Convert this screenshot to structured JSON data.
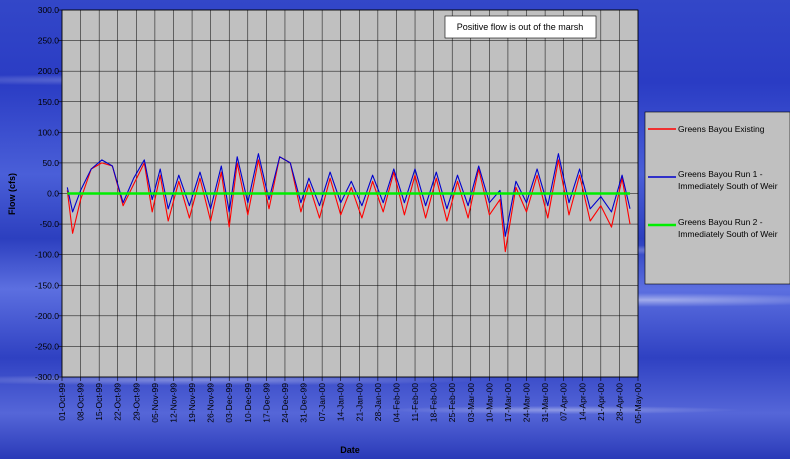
{
  "chart_data": {
    "type": "line",
    "title": "",
    "xlabel": "Date",
    "ylabel": "Flow (cfs)",
    "annotation": "Positive flow is out of the marsh",
    "ylim": [
      -300,
      300
    ],
    "y_ticks": [
      "300.0",
      "250.0",
      "200.0",
      "150.0",
      "100.0",
      "50.0",
      "0.0",
      "-50.0",
      "-100.0",
      "-150.0",
      "-200.0",
      "-250.0",
      "-300.0"
    ],
    "x_ticks": [
      "01-Oct-99",
      "08-Oct-99",
      "15-Oct-99",
      "22-Oct-99",
      "29-Oct-99",
      "05-Nov-99",
      "12-Nov-99",
      "19-Nov-99",
      "26-Nov-99",
      "03-Dec-99",
      "10-Dec-99",
      "17-Dec-99",
      "24-Dec-99",
      "31-Dec-99",
      "07-Jan-00",
      "14-Jan-00",
      "21-Jan-00",
      "28-Jan-00",
      "04-Feb-00",
      "11-Feb-00",
      "18-Feb-00",
      "25-Feb-00",
      "03-Mar-00",
      "10-Mar-00",
      "17-Mar-00",
      "24-Mar-00",
      "31-Mar-00",
      "07-Apr-00",
      "14-Apr-00",
      "21-Apr-00",
      "28-Apr-00",
      "05-May-00"
    ],
    "grid": true,
    "legend_position": "right",
    "series": [
      {
        "name": "Greens Bayou Existing",
        "color": "#ff0000",
        "x": [
          "1999-10-03",
          "1999-10-05",
          "1999-10-08",
          "1999-10-12",
          "1999-10-16",
          "1999-10-20",
          "1999-10-24",
          "1999-10-28",
          "1999-11-01",
          "1999-11-04",
          "1999-11-07",
          "1999-11-10",
          "1999-11-14",
          "1999-11-18",
          "1999-11-22",
          "1999-11-26",
          "1999-11-30",
          "1999-12-03",
          "1999-12-06",
          "1999-12-10",
          "1999-12-14",
          "1999-12-18",
          "1999-12-22",
          "1999-12-26",
          "1999-12-30",
          "2000-01-02",
          "2000-01-06",
          "2000-01-10",
          "2000-01-14",
          "2000-01-18",
          "2000-01-22",
          "2000-01-26",
          "2000-01-30",
          "2000-02-03",
          "2000-02-07",
          "2000-02-11",
          "2000-02-15",
          "2000-02-19",
          "2000-02-23",
          "2000-02-27",
          "2000-03-02",
          "2000-03-06",
          "2000-03-10",
          "2000-03-14",
          "2000-03-16",
          "2000-03-20",
          "2000-03-24",
          "2000-03-28",
          "2000-04-01",
          "2000-04-05",
          "2000-04-09",
          "2000-04-13",
          "2000-04-17",
          "2000-04-21",
          "2000-04-25",
          "2000-04-29",
          "2000-05-02"
        ],
        "y": [
          5,
          -65,
          -10,
          40,
          50,
          45,
          -20,
          15,
          50,
          -30,
          30,
          -45,
          20,
          -40,
          25,
          -45,
          35,
          -55,
          50,
          -35,
          55,
          -25,
          60,
          50,
          -30,
          15,
          -40,
          25,
          -35,
          10,
          -40,
          20,
          -30,
          35,
          -35,
          30,
          -40,
          25,
          -45,
          20,
          -40,
          40,
          -35,
          -10,
          -95,
          10,
          -30,
          30,
          -40,
          55,
          -35,
          30,
          -45,
          -20,
          -55,
          25,
          -50
        ]
      },
      {
        "name": "Greens Bayou Run 1 - Immediately South of Weir",
        "color": "#0000cc",
        "x": [
          "1999-10-03",
          "1999-10-05",
          "1999-10-08",
          "1999-10-12",
          "1999-10-16",
          "1999-10-20",
          "1999-10-24",
          "1999-10-28",
          "1999-11-01",
          "1999-11-04",
          "1999-11-07",
          "1999-11-10",
          "1999-11-14",
          "1999-11-18",
          "1999-11-22",
          "1999-11-26",
          "1999-11-30",
          "1999-12-03",
          "1999-12-06",
          "1999-12-10",
          "1999-12-14",
          "1999-12-18",
          "1999-12-22",
          "1999-12-26",
          "1999-12-30",
          "2000-01-02",
          "2000-01-06",
          "2000-01-10",
          "2000-01-14",
          "2000-01-18",
          "2000-01-22",
          "2000-01-26",
          "2000-01-30",
          "2000-02-03",
          "2000-02-07",
          "2000-02-11",
          "2000-02-15",
          "2000-02-19",
          "2000-02-23",
          "2000-02-27",
          "2000-03-02",
          "2000-03-06",
          "2000-03-10",
          "2000-03-14",
          "2000-03-16",
          "2000-03-20",
          "2000-03-24",
          "2000-03-28",
          "2000-04-01",
          "2000-04-05",
          "2000-04-09",
          "2000-04-13",
          "2000-04-17",
          "2000-04-21",
          "2000-04-25",
          "2000-04-29",
          "2000-05-02"
        ],
        "y": [
          10,
          -30,
          5,
          40,
          55,
          45,
          -15,
          25,
          55,
          -10,
          40,
          -25,
          30,
          -20,
          35,
          -25,
          45,
          -30,
          60,
          -15,
          65,
          -10,
          60,
          50,
          -15,
          25,
          -20,
          35,
          -15,
          20,
          -20,
          30,
          -15,
          40,
          -15,
          40,
          -20,
          35,
          -25,
          30,
          -20,
          45,
          -15,
          5,
          -70,
          20,
          -15,
          40,
          -20,
          65,
          -15,
          40,
          -25,
          -5,
          -30,
          30,
          -25
        ]
      },
      {
        "name": "Greens Bayou Run 2 - Immediately South of Weir",
        "color": "#00ee00",
        "x": [
          "1999-10-03",
          "2000-05-02"
        ],
        "y": [
          0,
          0
        ]
      }
    ]
  }
}
